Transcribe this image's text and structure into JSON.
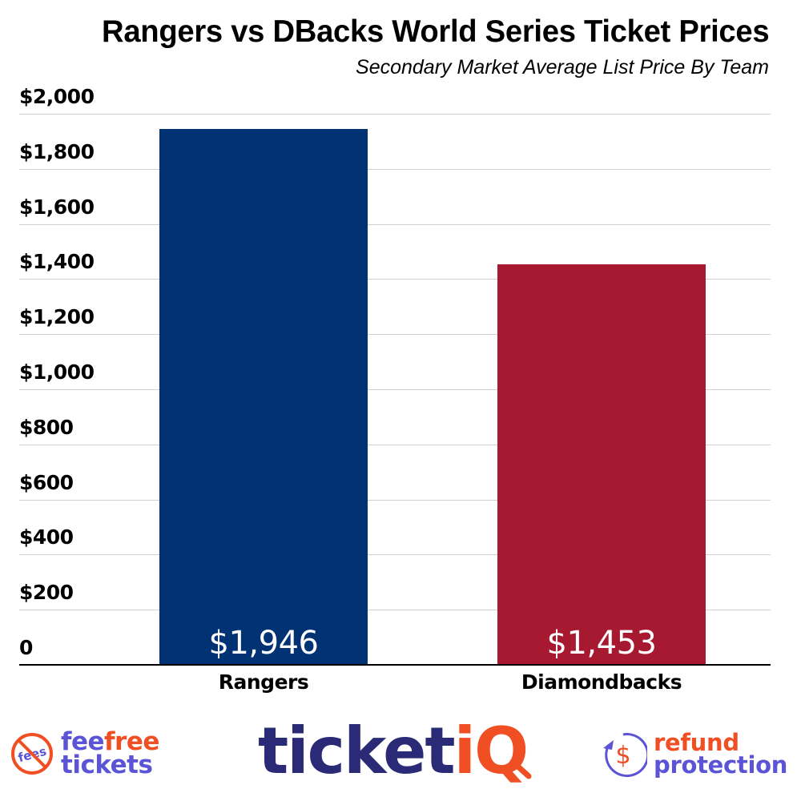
{
  "header": {
    "title": "Rangers vs DBacks World Series Ticket Prices",
    "subtitle": "Secondary Market Average List Price By Team"
  },
  "axis": {
    "y_ticks": [
      "$2,000",
      "$1,800",
      "$1,600",
      "$1,400",
      "$1,200",
      "$1,000",
      "$800",
      "$600",
      "$400",
      "$200",
      "0"
    ]
  },
  "bars": [
    {
      "label": "Rangers",
      "value_label": "$1,946",
      "value": 1946,
      "color": "#003274"
    },
    {
      "label": "Diamondbacks",
      "value_label": "$1,453",
      "value": 1453,
      "color": "#a71930"
    }
  ],
  "logos": {
    "feefree": {
      "badge_text": "fees",
      "line1_a": "fee",
      "line1_b": "free",
      "line2": "tickets"
    },
    "ticketiq": {
      "part1": "ticket",
      "part2": "iQ"
    },
    "refund": {
      "icon_symbol": "$",
      "line1": "refund",
      "line2": "protection"
    }
  },
  "colors": {
    "rangers": "#003274",
    "diamondbacks": "#a71930",
    "brand_purple": "#5b54d6",
    "brand_navy": "#2b2a76",
    "brand_orange": "#f04e23",
    "grid": "#cfcfcf"
  },
  "chart_data": {
    "type": "bar",
    "title": "Rangers vs DBacks World Series Ticket Prices",
    "subtitle": "Secondary Market Average List Price By Team",
    "categories": [
      "Rangers",
      "Diamondbacks"
    ],
    "values": [
      1946,
      1453
    ],
    "data_labels": [
      "$1,946",
      "$1,453"
    ],
    "bar_colors": [
      "#003274",
      "#a71930"
    ],
    "xlabel": "",
    "ylabel": "",
    "ylim": [
      0,
      2000
    ],
    "y_tick_step": 200,
    "y_tick_labels": [
      "0",
      "$200",
      "$400",
      "$600",
      "$800",
      "$1,000",
      "$1,200",
      "$1,400",
      "$1,600",
      "$1,800",
      "$2,000"
    ],
    "grid": true,
    "legend": "none"
  }
}
